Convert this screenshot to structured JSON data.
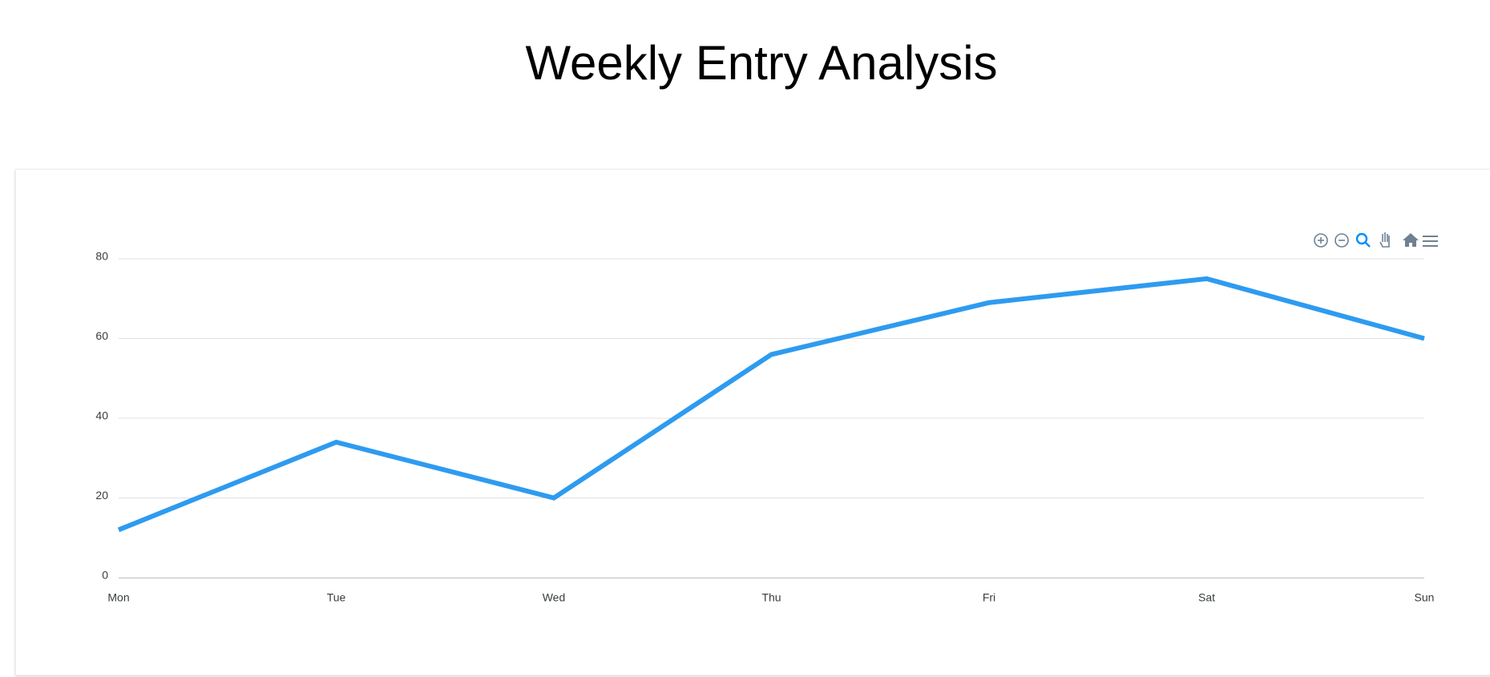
{
  "chart_data": {
    "type": "line",
    "title": "Weekly Entry Analysis",
    "categories": [
      "Mon",
      "Tue",
      "Wed",
      "Thu",
      "Fri",
      "Sat",
      "Sun"
    ],
    "values": [
      12,
      34,
      20,
      56,
      69,
      75,
      60
    ],
    "color": "#2e9bf0",
    "ylim": [
      0,
      80
    ],
    "yticks": [
      0,
      20,
      40,
      60,
      80
    ],
    "grid": true
  }
}
